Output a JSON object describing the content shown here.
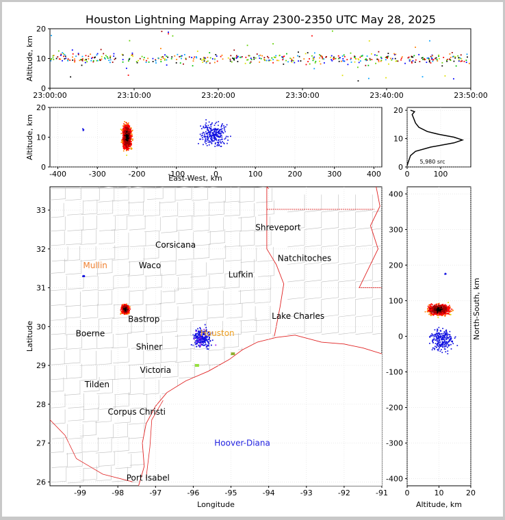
{
  "title": "Houston Lightning Mapping Array 2300-2350 UTC May 28, 2025",
  "colors": {
    "frame": "#c8c8c8",
    "county_lines": "#bdbdbd",
    "state_and_coast_lines": "#e02020",
    "orange_label": "#f08030",
    "houston_label": "#f0a020",
    "hoover_label": "#2020e0"
  },
  "chart_data": [
    {
      "id": "time_height",
      "type": "scatter",
      "xlabel": "",
      "ylabel": "Altitude, km",
      "x_tick_labels": [
        "23:00:00",
        "23:10:00",
        "23:20:00",
        "23:30:00",
        "23:40:00",
        "23:50:00"
      ],
      "xlim_minutes": [
        0,
        50
      ],
      "ylim": [
        0,
        20
      ],
      "y_ticks": [
        0,
        10,
        20
      ],
      "points_description": "continuous band of sources between about 7 and 13 km altitude across 23:00-23:50 UTC"
    },
    {
      "id": "east_west_altitude",
      "type": "scatter",
      "xlabel": "East-West, km",
      "ylabel": "Altitude, km",
      "xlim": [
        -420,
        420
      ],
      "x_ticks": [
        -400,
        -300,
        -200,
        -100,
        0,
        100,
        200,
        300,
        400
      ],
      "ylim": [
        0,
        20
      ],
      "y_ticks": [
        0,
        10,
        20
      ],
      "clusters": [
        {
          "x_center": -225,
          "alt_center": 10,
          "x_spread": 15,
          "alt_spread": 6,
          "density": "high"
        },
        {
          "x_center": -5,
          "alt_center": 11,
          "x_spread": 45,
          "alt_spread": 6,
          "density": "low"
        },
        {
          "x_center": -335,
          "alt_center": 12.5,
          "x_spread": 4,
          "alt_spread": 0.5,
          "density": "low"
        }
      ]
    },
    {
      "id": "altitude_histogram",
      "type": "line",
      "xlabel": "",
      "ylabel": "",
      "xlim": [
        0,
        190
      ],
      "x_ticks": [
        0,
        100
      ],
      "ylim": [
        0,
        21
      ],
      "y_ticks": [
        0,
        10,
        20
      ],
      "source_count_label": "5,980 src",
      "profile": [
        {
          "alt": 0.5,
          "count": 0
        },
        {
          "alt": 2,
          "count": 4
        },
        {
          "alt": 4,
          "count": 10
        },
        {
          "alt": 5.5,
          "count": 25
        },
        {
          "alt": 7,
          "count": 70
        },
        {
          "alt": 8.5,
          "count": 140
        },
        {
          "alt": 9.5,
          "count": 165
        },
        {
          "alt": 10.5,
          "count": 140
        },
        {
          "alt": 11.5,
          "count": 95
        },
        {
          "alt": 12.5,
          "count": 60
        },
        {
          "alt": 14,
          "count": 35
        },
        {
          "alt": 15.5,
          "count": 25
        },
        {
          "alt": 17,
          "count": 20
        },
        {
          "alt": 18.5,
          "count": 15
        },
        {
          "alt": 19.5,
          "count": 22
        },
        {
          "alt": 20,
          "count": 10
        }
      ]
    },
    {
      "id": "plan_view",
      "type": "scatter",
      "xlabel": "Longitude",
      "ylabel": "Latitude",
      "xlim": [
        -99.8,
        -91
      ],
      "x_ticks": [
        -99,
        -98,
        -97,
        -96,
        -95,
        -94,
        -93,
        -92,
        -91
      ],
      "ylim": [
        25.9,
        33.6
      ],
      "y_ticks": [
        26,
        27,
        28,
        29,
        30,
        31,
        32,
        33
      ],
      "cities": [
        {
          "name": "Shreveport",
          "lon": -93.75,
          "lat": 32.55,
          "color": "#000000"
        },
        {
          "name": "Corsicana",
          "lon": -96.47,
          "lat": 32.1,
          "color": "#000000"
        },
        {
          "name": "Natchitoches",
          "lon": -93.05,
          "lat": 31.76,
          "color": "#000000"
        },
        {
          "name": "Mullin",
          "lon": -98.6,
          "lat": 31.57,
          "color": "#f08030"
        },
        {
          "name": "Waco",
          "lon": -97.15,
          "lat": 31.57,
          "color": "#000000"
        },
        {
          "name": "Lufkin",
          "lon": -94.74,
          "lat": 31.34,
          "color": "#000000"
        },
        {
          "name": "Lake Charles",
          "lon": -93.22,
          "lat": 30.27,
          "color": "#000000"
        },
        {
          "name": "Bastrop",
          "lon": -97.31,
          "lat": 30.19,
          "color": "#000000"
        },
        {
          "name": "Boerne",
          "lon": -98.73,
          "lat": 29.82,
          "color": "#000000"
        },
        {
          "name": "Houston",
          "lon": -95.36,
          "lat": 29.83,
          "color": "#f0a020"
        },
        {
          "name": "Shiner",
          "lon": -97.17,
          "lat": 29.48,
          "color": "#000000"
        },
        {
          "name": "Victoria",
          "lon": -97.0,
          "lat": 28.88,
          "color": "#000000"
        },
        {
          "name": "Tilden",
          "lon": -98.55,
          "lat": 28.51,
          "color": "#000000"
        },
        {
          "name": "Corpus Christi",
          "lon": -97.5,
          "lat": 27.8,
          "color": "#000000"
        },
        {
          "name": "Hoover-Diana",
          "lon": -94.7,
          "lat": 27.0,
          "color": "#2020e0"
        },
        {
          "name": "Port Isabel",
          "lon": -97.2,
          "lat": 26.1,
          "color": "#000000"
        }
      ],
      "clusters": [
        {
          "lon_center": -97.8,
          "lat_center": 30.45,
          "lon_spread": 0.12,
          "lat_spread": 0.15,
          "density": "high"
        },
        {
          "lon_center": -95.75,
          "lat_center": 29.7,
          "lon_spread": 0.3,
          "lat_spread": 0.35,
          "density": "low"
        },
        {
          "lon_center": -98.9,
          "lat_center": 31.3,
          "lon_spread": 0.04,
          "lat_spread": 0.03,
          "density": "low"
        }
      ]
    },
    {
      "id": "altitude_north_south",
      "type": "scatter",
      "xlabel": "Altitude, km",
      "ylabel": "North-South, km",
      "xlim": [
        0,
        20
      ],
      "x_ticks": [
        0,
        10,
        20
      ],
      "ylim": [
        -420,
        420
      ],
      "y_ticks": [
        -400,
        -300,
        -200,
        -100,
        0,
        100,
        200,
        300,
        400
      ],
      "clusters": [
        {
          "alt_center": 10,
          "y_center": 75,
          "alt_spread": 4.5,
          "y_spread": 20,
          "density": "high"
        },
        {
          "alt_center": 11,
          "y_center": -10,
          "alt_spread": 5,
          "y_spread": 45,
          "density": "low"
        },
        {
          "alt_center": 12,
          "y_center": 175,
          "alt_spread": 0.3,
          "y_spread": 3,
          "density": "low"
        }
      ]
    }
  ]
}
